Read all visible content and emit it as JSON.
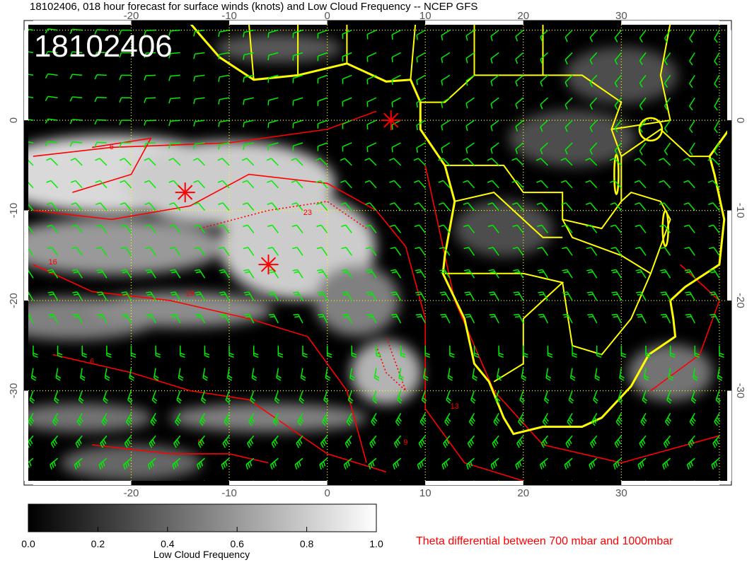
{
  "title": "18102406, 018 hour forecast for surface winds (knots) and Low Cloud Frequency -- NCEP GFS",
  "stamp": "18102406",
  "map": {
    "lon_range": [
      -30.5,
      40.8
    ],
    "lat_range": [
      -40,
      10.6
    ],
    "lon_ticks": [
      "-20",
      "-10",
      "0",
      "10",
      "20",
      "30"
    ],
    "lon_tick_values": [
      -20,
      -10,
      0,
      10,
      20,
      30
    ],
    "lat_ticks": [
      "0",
      "-10",
      "-20",
      "-30"
    ],
    "lat_tick_values": [
      0,
      -10,
      -20,
      -30
    ],
    "colors": {
      "background": "#000000",
      "coastline": "#ffff00",
      "gridlines": "#ffff00",
      "wind_barbs": "#00ee00",
      "theta_contours": "#ff0000",
      "markers": "#ff0000"
    },
    "contour_labels": [
      "6",
      "9",
      "13",
      "16",
      "19",
      "23"
    ],
    "markers": [
      {
        "lon": -14.5,
        "lat": -8
      },
      {
        "lon": -6,
        "lat": -16
      },
      {
        "lon": 6.5,
        "lat": 0
      }
    ]
  },
  "colorbar": {
    "label": "Low Cloud Frequency",
    "ticks": [
      "0.0",
      "0.2",
      "0.4",
      "0.6",
      "0.8",
      "1.0"
    ],
    "range": [
      0,
      1
    ],
    "colors": [
      "#000000",
      "#ffffff"
    ]
  },
  "caption": "Theta differential between 700 mbar and 1000mbar"
}
